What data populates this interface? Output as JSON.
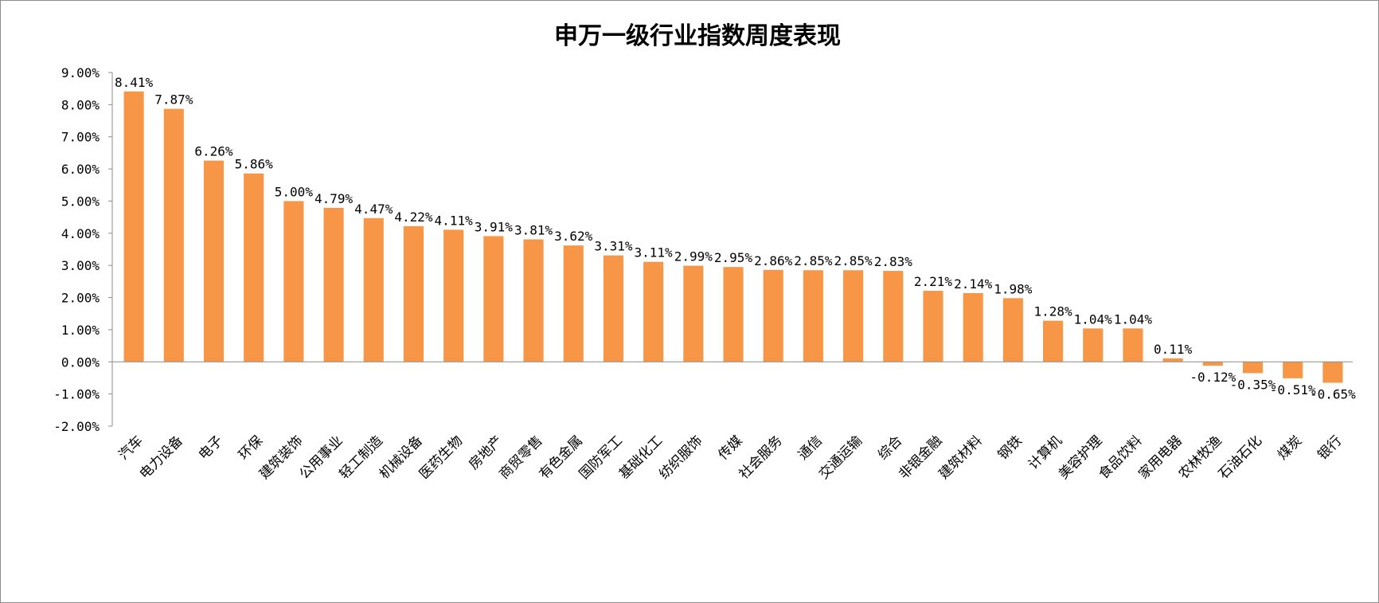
{
  "chart_data": {
    "type": "bar",
    "title": "申万一级行业指数周度表现",
    "categories": [
      "汽车",
      "电力设备",
      "电子",
      "环保",
      "建筑装饰",
      "公用事业",
      "轻工制造",
      "机械设备",
      "医药生物",
      "房地产",
      "商贸零售",
      "有色金属",
      "国防军工",
      "基础化工",
      "纺织服饰",
      "传媒",
      "社会服务",
      "通信",
      "交通运输",
      "综合",
      "非银金融",
      "建筑材料",
      "钢铁",
      "计算机",
      "美容护理",
      "食品饮料",
      "家用电器",
      "农林牧渔",
      "石油石化",
      "煤炭",
      "银行"
    ],
    "values": [
      8.41,
      7.87,
      6.26,
      5.86,
      5.0,
      4.79,
      4.47,
      4.22,
      4.11,
      3.91,
      3.81,
      3.62,
      3.31,
      3.11,
      2.99,
      2.95,
      2.86,
      2.85,
      2.85,
      2.83,
      2.21,
      2.14,
      1.98,
      1.28,
      1.04,
      1.04,
      0.11,
      -0.12,
      -0.35,
      -0.51,
      -0.65
    ],
    "data_labels": [
      "8.41%",
      "7.87%",
      "6.26%",
      "5.86%",
      "5.00%",
      "4.79%",
      "4.47%",
      "4.22%",
      "4.11%",
      "3.91%",
      "3.81%",
      "3.62%",
      "3.31%",
      "3.11%",
      "2.99%",
      "2.95%",
      "2.86%",
      "2.85%",
      "2.85%",
      "2.83%",
      "2.21%",
      "2.14%",
      "1.98%",
      "1.28%",
      "1.04%",
      "1.04%",
      "0.11%",
      "-0.12%",
      "-0.35%",
      "-0.51%",
      "-0.65%"
    ],
    "y_ticks": [
      9,
      8,
      7,
      6,
      5,
      4,
      3,
      2,
      1,
      0,
      -1,
      -2
    ],
    "y_tick_labels": [
      "9.00%",
      "8.00%",
      "7.00%",
      "6.00%",
      "5.00%",
      "4.00%",
      "3.00%",
      "2.00%",
      "1.00%",
      "0.00%",
      "-1.00%",
      "-2.00%"
    ],
    "ylim": [
      -2,
      9
    ],
    "xlabel": "",
    "ylabel": "",
    "grid": false,
    "legend": "none",
    "bar_color": "#F79646"
  }
}
